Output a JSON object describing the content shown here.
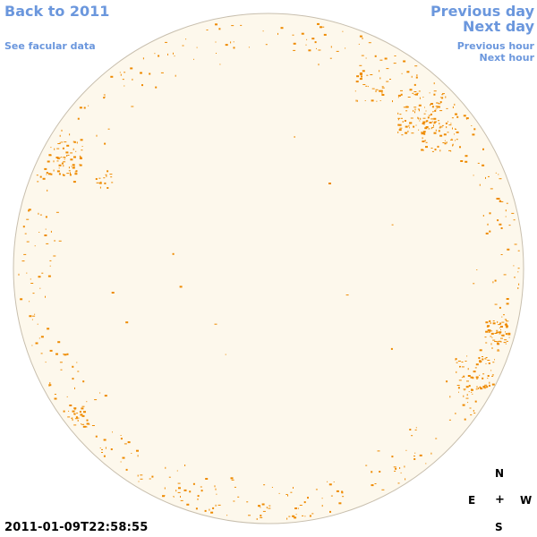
{
  "nav": {
    "back_label": "Back to 2011",
    "facular_label": "See facular data",
    "previous_day_label": "Previous day",
    "next_day_label": "Next day",
    "previous_hour_label": "Previous hour",
    "next_hour_label": "Next hour"
  },
  "observation": {
    "timestamp": "2011-01-09T22:58:55"
  },
  "compass": {
    "north": "N",
    "east": "E",
    "center": "+",
    "west": "W",
    "south": "S"
  },
  "colors": {
    "link": "#6b97dd",
    "disk_fill": "#fdf8ec",
    "disk_edge": "#c8bfae",
    "feature": "#ee8a00"
  }
}
